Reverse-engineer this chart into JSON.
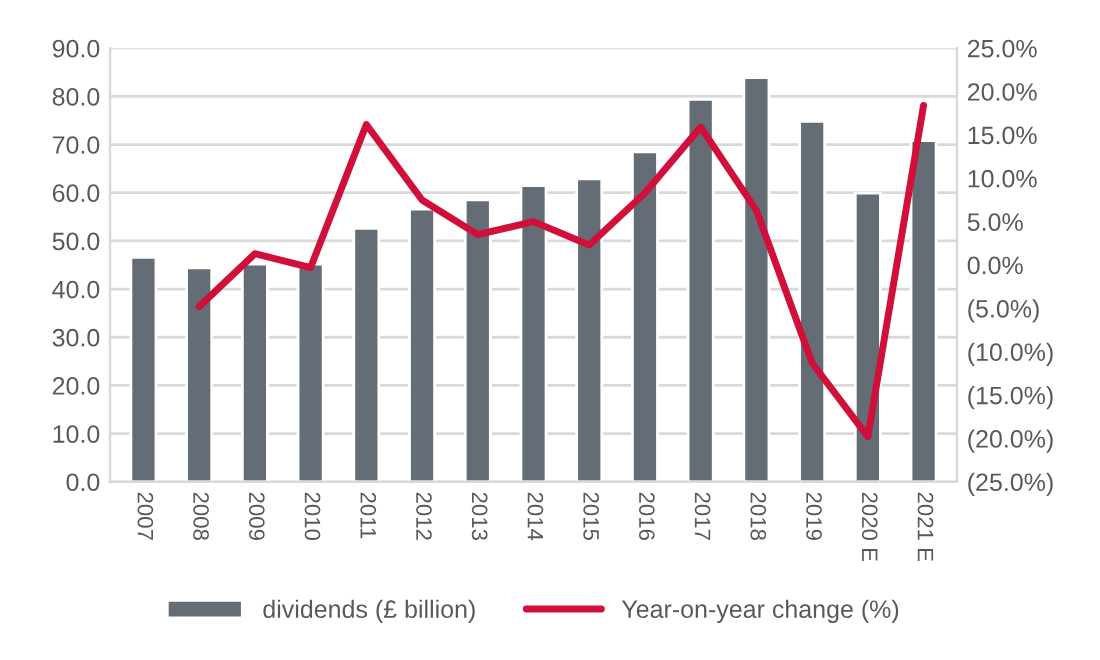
{
  "chart_data": {
    "type": "bar",
    "categories": [
      "2007",
      "2008",
      "2009",
      "2010",
      "2011",
      "2012",
      "2013",
      "2014",
      "2015",
      "2016",
      "2017",
      "2018",
      "2019",
      "2020 E",
      "2021 E"
    ],
    "series": [
      {
        "name": "dividends (£ billion)",
        "color": "#646c76",
        "values": [
          46.6,
          44.4,
          45.2,
          45.2,
          52.6,
          56.6,
          58.5,
          61.5,
          62.9,
          68.5,
          79.4,
          83.9,
          74.8,
          59.9,
          70.8
        ]
      },
      {
        "name": "Year-on-year change (%)",
        "type": "line",
        "axis": "y2",
        "color": "#d0103a",
        "values": [
          null,
          -4.8,
          1.3,
          -0.3,
          16.2,
          7.5,
          3.5,
          5.0,
          2.3,
          8.3,
          15.9,
          6.3,
          -11.3,
          -19.8,
          18.4
        ]
      }
    ],
    "ylim": [
      0,
      90
    ],
    "yticks": [
      {
        "value": 0,
        "label": "0.0"
      },
      {
        "value": 10,
        "label": "10.0"
      },
      {
        "value": 20,
        "label": "20.0"
      },
      {
        "value": 30,
        "label": "30.0"
      },
      {
        "value": 40,
        "label": "40.0"
      },
      {
        "value": 50,
        "label": "50.0"
      },
      {
        "value": 60,
        "label": "60.0"
      },
      {
        "value": 70,
        "label": "70.0"
      },
      {
        "value": 80,
        "label": "80.0"
      },
      {
        "value": 90,
        "label": "90.0"
      }
    ],
    "y2lim": [
      -25,
      25
    ],
    "y2ticks": [
      {
        "value": -25,
        "label": "(25.0%)"
      },
      {
        "value": -20,
        "label": "(20.0%)"
      },
      {
        "value": -15,
        "label": "(15.0%)"
      },
      {
        "value": -10,
        "label": "(10.0%)"
      },
      {
        "value": -5,
        "label": "(5.0%)"
      },
      {
        "value": 0,
        "label": "0.0%"
      },
      {
        "value": 5,
        "label": "5.0%"
      },
      {
        "value": 10,
        "label": "10.0%"
      },
      {
        "value": 15,
        "label": "15.0%"
      },
      {
        "value": 20,
        "label": "20.0%"
      },
      {
        "value": 25,
        "label": "25.0%"
      }
    ],
    "grid": "y",
    "legend": "bottom",
    "marker": "none",
    "line_style": "solid"
  }
}
